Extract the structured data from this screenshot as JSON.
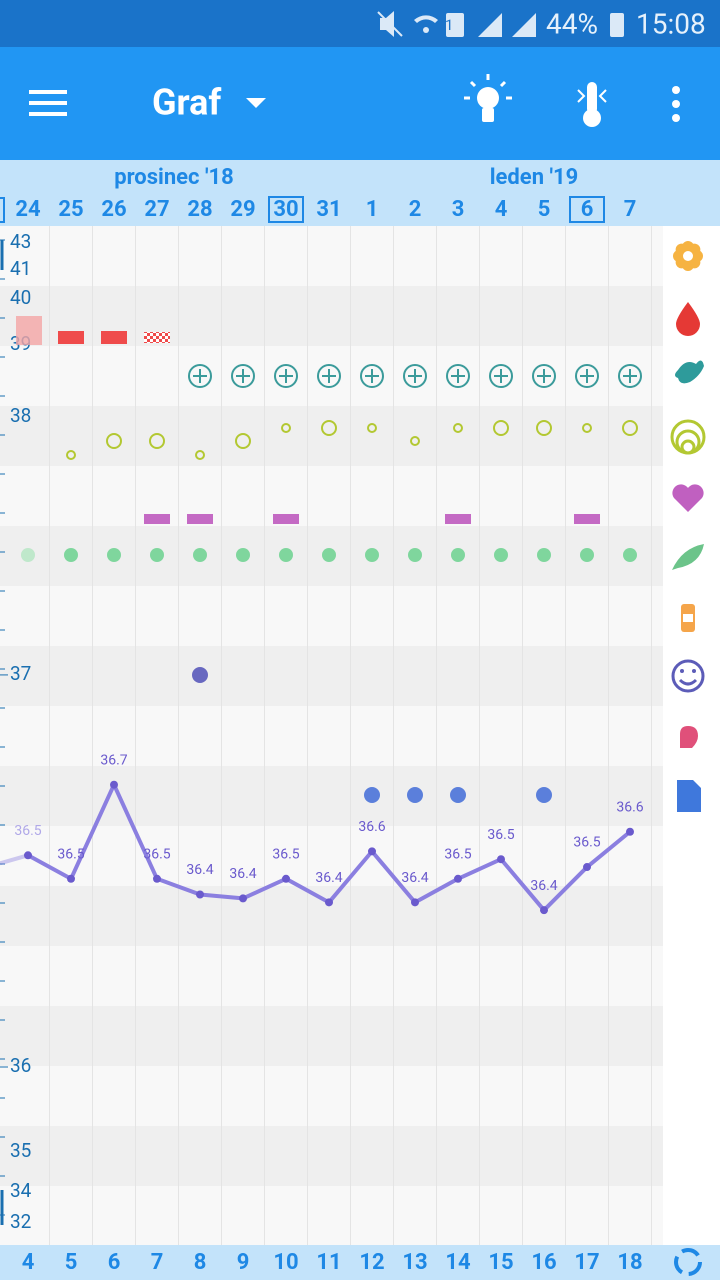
{
  "status_bar": {
    "battery": "44%",
    "time": "15:08"
  },
  "app_bar": {
    "title": "Graf"
  },
  "months": [
    "prosinec '18",
    "leden '19"
  ],
  "cycle_days": [
    "4",
    "5",
    "6",
    "7",
    "8",
    "9",
    "10",
    "11",
    "12",
    "13",
    "14",
    "15",
    "16",
    "17",
    "18"
  ],
  "side_labels": [
    "43",
    "41",
    "40",
    "39",
    "38",
    "35",
    "34",
    "32"
  ],
  "chart_data": {
    "type": "line",
    "categories": [
      "24",
      "25",
      "26",
      "27",
      "28",
      "29",
      "30",
      "31",
      "1",
      "2",
      "3",
      "4",
      "5",
      "6",
      "7"
    ],
    "values": [
      36.54,
      36.48,
      36.72,
      36.48,
      36.44,
      36.43,
      36.48,
      36.42,
      36.55,
      36.42,
      36.48,
      36.53,
      36.4,
      36.51,
      36.6
    ],
    "value_labels": [
      "36.5",
      "36.5",
      "36.7",
      "36.5",
      "36.4",
      "36.4",
      "36.5",
      "36.4",
      "36.6",
      "36.4",
      "36.5",
      "36.5",
      "36.4",
      "36.5",
      "36.6"
    ],
    "ylim": [
      35.546,
      38.145
    ],
    "yticks": [
      37,
      36
    ],
    "color": "#8b7fe0"
  }
}
